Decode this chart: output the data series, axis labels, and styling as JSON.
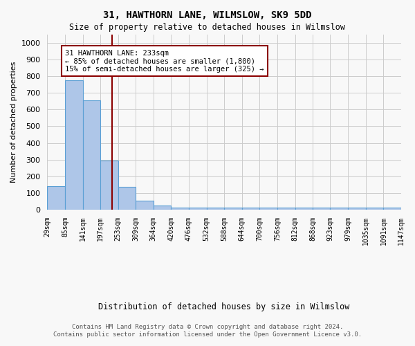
{
  "title": "31, HAWTHORN LANE, WILMSLOW, SK9 5DD",
  "subtitle": "Size of property relative to detached houses in Wilmslow",
  "xlabel": "Distribution of detached houses by size in Wilmslow",
  "ylabel": "Number of detached properties",
  "bin_edges": [
    29,
    85,
    141,
    197,
    253,
    309,
    364,
    420,
    476,
    532,
    588,
    644,
    700,
    756,
    812,
    868,
    923,
    979,
    1035,
    1091,
    1147
  ],
  "bar_heights": [
    140,
    775,
    655,
    295,
    135,
    55,
    25,
    10,
    10,
    10,
    10,
    10,
    10,
    10,
    10,
    10,
    10,
    10,
    10,
    10
  ],
  "bar_color": "#aec6e8",
  "bar_edge_color": "#5a9fd4",
  "property_size": 233,
  "vline_color": "#8b0000",
  "annotation_text": "31 HAWTHORN LANE: 233sqm\n← 85% of detached houses are smaller (1,800)\n15% of semi-detached houses are larger (325) →",
  "annotation_box_color": "white",
  "annotation_box_edge_color": "#8b0000",
  "ylim": [
    0,
    1050
  ],
  "yticks": [
    0,
    100,
    200,
    300,
    400,
    500,
    600,
    700,
    800,
    900,
    1000
  ],
  "footer_line1": "Contains HM Land Registry data © Crown copyright and database right 2024.",
  "footer_line2": "Contains public sector information licensed under the Open Government Licence v3.0.",
  "bg_color": "#f8f8f8",
  "grid_color": "#cccccc"
}
